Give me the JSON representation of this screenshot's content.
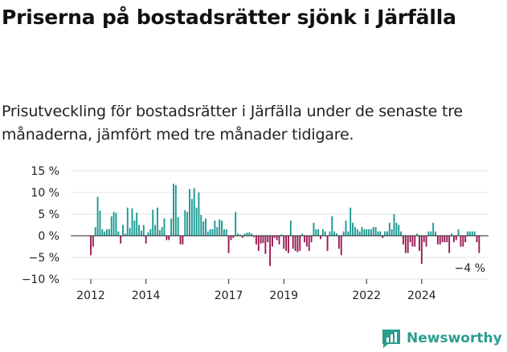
{
  "title": "Priserna på bostadsrätter sjönk i Järfälla",
  "subtitle": "Prisutveckling för bostadsrätter i Järfälla under de senaste tre månaderna, jämfört med tre månader tidigare.",
  "brand": "Newsworthy",
  "chart_data": {
    "type": "bar",
    "title": "",
    "xlabel": "",
    "ylabel": "",
    "ylim": [
      -10,
      15
    ],
    "yticks": [
      15,
      10,
      5,
      0,
      -5,
      -10
    ],
    "ytick_labels": [
      "15 %",
      "10 %",
      "5 %",
      "0 %",
      "−5 %",
      "−10 %"
    ],
    "xticks": [
      {
        "year": 2012,
        "index": 0
      },
      {
        "year": 2014,
        "index": 24
      },
      {
        "year": 2017,
        "index": 60
      },
      {
        "year": 2019,
        "index": 84
      },
      {
        "year": 2022,
        "index": 120
      },
      {
        "year": 2024,
        "index": 144
      }
    ],
    "start": "2012-01",
    "grid": true,
    "colors": {
      "positive": "#1b9a94",
      "negative": "#9b1a55"
    },
    "annotation": "−4 %",
    "values": [
      -4.5,
      -2.5,
      2.0,
      9.0,
      5.8,
      1.5,
      1.0,
      1.5,
      1.5,
      4.5,
      5.5,
      5.3,
      1.0,
      -1.8,
      2.5,
      0.5,
      6.5,
      1.8,
      6.3,
      3.5,
      5.3,
      2.5,
      1.2,
      2.5,
      -1.8,
      0.8,
      1.5,
      6.0,
      2.5,
      6.5,
      1.3,
      2.0,
      4.0,
      -1.0,
      -1.0,
      4.0,
      12.0,
      11.7,
      4.3,
      -2.0,
      -2.0,
      5.9,
      5.5,
      10.8,
      8.5,
      11.0,
      6.5,
      10.0,
      4.8,
      3.3,
      4.0,
      1.0,
      1.5,
      1.5,
      3.5,
      2.0,
      3.8,
      3.5,
      1.5,
      1.5,
      -4.0,
      -1.0,
      -0.5,
      5.5,
      0.5,
      0.3,
      -0.5,
      0.5,
      0.7,
      0.8,
      0.5,
      -0.3,
      -2.0,
      -3.5,
      -1.8,
      -1.7,
      -4.2,
      -1.5,
      -7.0,
      -2.5,
      -0.5,
      -1.0,
      -2.0,
      0.3,
      -3.0,
      -3.5,
      -4.0,
      3.5,
      -3.0,
      -3.5,
      -3.8,
      -3.5,
      0.5,
      -1.5,
      -2.5,
      -3.5,
      -1.5,
      3.0,
      1.5,
      1.5,
      -0.8,
      1.5,
      1.0,
      -3.5,
      1.0,
      4.5,
      1.0,
      0.5,
      -3.0,
      -4.5,
      1.0,
      3.5,
      1.0,
      6.5,
      3.0,
      2.0,
      1.5,
      1.0,
      2.0,
      1.5,
      1.5,
      1.5,
      1.5,
      2.0,
      2.0,
      1.0,
      1.0,
      -0.5,
      1.0,
      1.0,
      3.0,
      1.5,
      5.0,
      3.0,
      2.5,
      1.0,
      -2.0,
      -4.0,
      -4.0,
      -1.5,
      -2.5,
      -2.5,
      0.5,
      -3.5,
      -6.5,
      -1.5,
      -2.5,
      1.0,
      1.0,
      3.0,
      1.0,
      -2.0,
      -2.0,
      -1.5,
      -1.5,
      -1.5,
      -4.0,
      0.5,
      -1.5,
      -1.0,
      1.5,
      -2.5,
      -2.5,
      -1.5,
      1.0,
      1.0,
      1.0,
      1.0,
      -1.5,
      -4.0
    ]
  }
}
